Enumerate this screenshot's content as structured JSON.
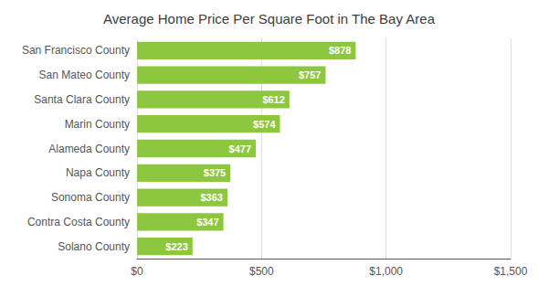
{
  "chart_data": {
    "type": "bar",
    "orientation": "horizontal",
    "title": "Average Home Price Per Square Foot in The Bay Area",
    "categories": [
      "San Francisco County",
      "San Mateo County",
      "Santa Clara County",
      "Marin County",
      "Alameda County",
      "Napa County",
      "Sonoma County",
      "Contra Costa County",
      "Solano County"
    ],
    "values": [
      878,
      757,
      612,
      574,
      477,
      375,
      363,
      347,
      223
    ],
    "value_labels": [
      "$878",
      "$757",
      "$612",
      "$574",
      "$477",
      "$375",
      "$363",
      "$347",
      "$223"
    ],
    "data_labels": true,
    "color": "#8DC63F",
    "xlim": [
      0,
      1500
    ],
    "xticks": [
      {
        "value": 0,
        "label": "$0"
      },
      {
        "value": 500,
        "label": "$500"
      },
      {
        "value": 1000,
        "label": "$1,000"
      },
      {
        "value": 1500,
        "label": "$1,500"
      }
    ],
    "grid": true
  }
}
